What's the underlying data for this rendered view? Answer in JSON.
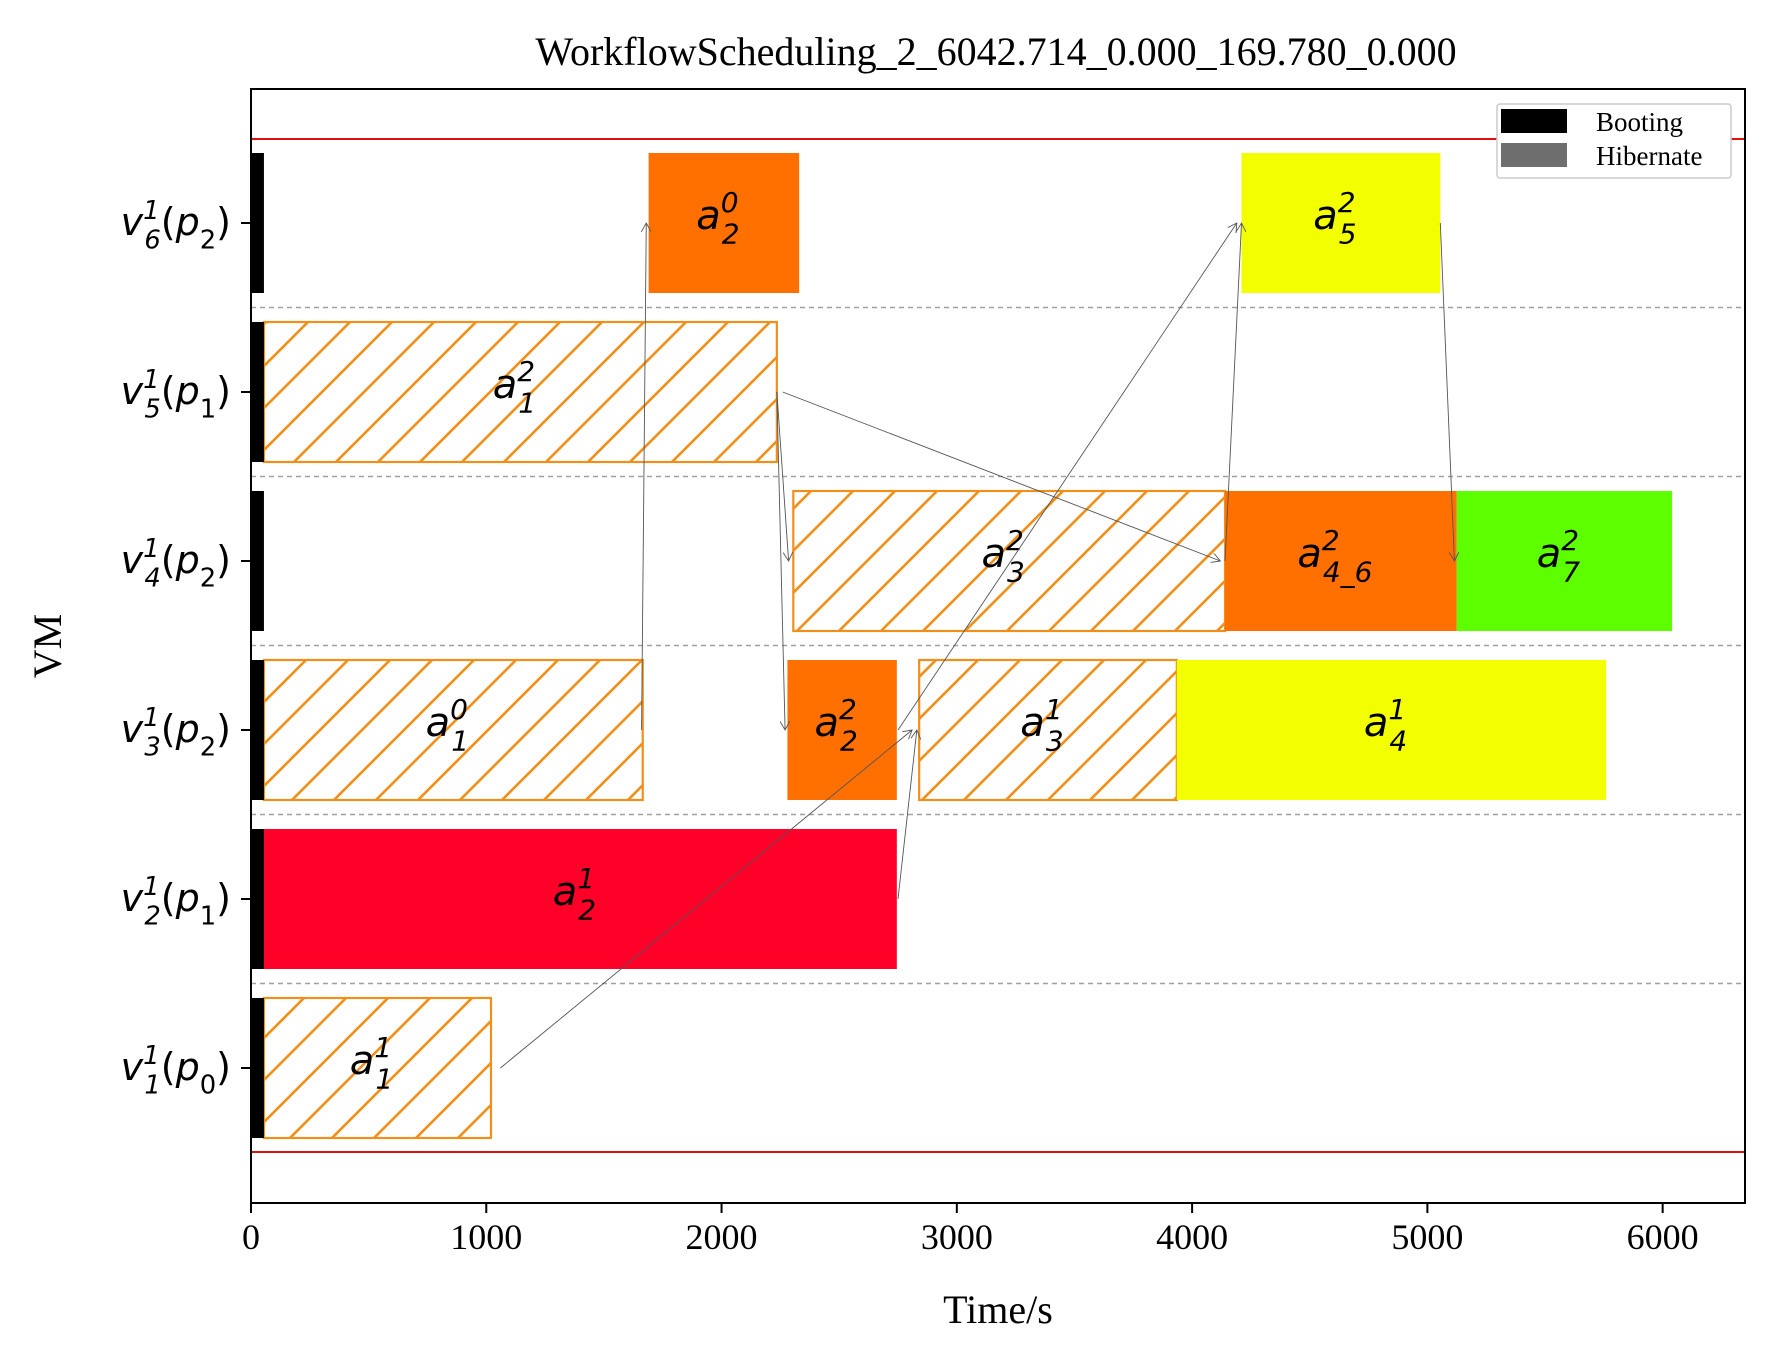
{
  "chart_data": {
    "type": "gantt",
    "title": "WorkflowScheduling_2_6042.714_0.000_169.780_0.000",
    "xlabel": "Time/s",
    "ylabel": "VM",
    "xlim": [
      0,
      6350
    ],
    "xticks": [
      0,
      1000,
      2000,
      3000,
      4000,
      5000,
      6000
    ],
    "grid": "dashed horizontal lane separators",
    "legend": {
      "position": "top-right",
      "entries": [
        {
          "label": "Booting",
          "color": "#000000"
        },
        {
          "label": "Hibernate",
          "color": "#6e6e6e"
        }
      ]
    },
    "vms": [
      {
        "base": "v",
        "sub": "1",
        "sup": "1",
        "plat": "p",
        "platsub": "0"
      },
      {
        "base": "v",
        "sub": "2",
        "sup": "1",
        "plat": "p",
        "platsub": "1"
      },
      {
        "base": "v",
        "sub": "3",
        "sup": "1",
        "plat": "p",
        "platsub": "2"
      },
      {
        "base": "v",
        "sub": "4",
        "sup": "1",
        "plat": "p",
        "platsub": "2"
      },
      {
        "base": "v",
        "sub": "5",
        "sup": "1",
        "plat": "p",
        "platsub": "1"
      },
      {
        "base": "v",
        "sub": "6",
        "sup": "1",
        "plat": "p",
        "platsub": "2"
      }
    ],
    "booting": [
      {
        "vm": 0,
        "start": 0,
        "end": 55
      },
      {
        "vm": 1,
        "start": 0,
        "end": 55
      },
      {
        "vm": 2,
        "start": 0,
        "end": 55
      },
      {
        "vm": 3,
        "start": 0,
        "end": 55
      },
      {
        "vm": 4,
        "start": 0,
        "end": 55
      },
      {
        "vm": 5,
        "start": 0,
        "end": 55
      }
    ],
    "tasks": [
      {
        "vm": 0,
        "start": 55,
        "end": 1020,
        "label_base": "a",
        "label_sub": "1",
        "label_sup": "1",
        "style": "hatched",
        "color": "#f0901a"
      },
      {
        "vm": 1,
        "start": 55,
        "end": 2745,
        "label_base": "a",
        "label_sub": "2",
        "label_sup": "1",
        "style": "solid",
        "color": "#ff0029"
      },
      {
        "vm": 2,
        "start": 55,
        "end": 1665,
        "label_base": "a",
        "label_sub": "1",
        "label_sup": "0",
        "style": "hatched",
        "color": "#f0901a"
      },
      {
        "vm": 2,
        "start": 2280,
        "end": 2745,
        "label_base": "a",
        "label_sub": "2",
        "label_sup": "2",
        "style": "solid",
        "color": "#ff7000"
      },
      {
        "vm": 2,
        "start": 2840,
        "end": 3935,
        "label_base": "a",
        "label_sub": "3",
        "label_sup": "1",
        "style": "hatched",
        "color": "#f0901a"
      },
      {
        "vm": 2,
        "start": 3935,
        "end": 5760,
        "label_base": "a",
        "label_sub": "4",
        "label_sup": "1",
        "style": "solid",
        "color": "#f3ff00"
      },
      {
        "vm": 3,
        "start": 2305,
        "end": 4140,
        "label_base": "a",
        "label_sub": "3",
        "label_sup": "2",
        "style": "hatched",
        "color": "#f0901a"
      },
      {
        "vm": 3,
        "start": 4140,
        "end": 5125,
        "label_base": "a",
        "label_sub": "4_6",
        "label_sup": "2",
        "style": "solid",
        "color": "#ff7000"
      },
      {
        "vm": 3,
        "start": 5125,
        "end": 6040,
        "label_base": "a",
        "label_sub": "7",
        "label_sup": "2",
        "style": "solid",
        "color": "#5dff00"
      },
      {
        "vm": 4,
        "start": 55,
        "end": 2235,
        "label_base": "a",
        "label_sub": "1",
        "label_sup": "2",
        "style": "hatched",
        "color": "#f0901a"
      },
      {
        "vm": 5,
        "start": 1690,
        "end": 2330,
        "label_base": "a",
        "label_sub": "2",
        "label_sup": "0",
        "style": "solid",
        "color": "#ff7000"
      },
      {
        "vm": 5,
        "start": 4210,
        "end": 5055,
        "label_base": "a",
        "label_sub": "5",
        "label_sup": "2",
        "style": "solid",
        "color": "#f3ff00"
      }
    ],
    "dependencies": [
      {
        "from_time": 1060,
        "from_vm": 0,
        "to_time": 2810,
        "to_vm": 2
      },
      {
        "from_time": 2750,
        "from_vm": 1,
        "to_time": 2830,
        "to_vm": 2
      },
      {
        "from_time": 1660,
        "from_vm": 2,
        "to_time": 1680,
        "to_vm": 5
      },
      {
        "from_time": 2750,
        "from_vm": 2,
        "to_time": 4190,
        "to_vm": 5
      },
      {
        "from_time": 2235,
        "from_vm": 4,
        "to_time": 2285,
        "to_vm": 3
      },
      {
        "from_time": 2235,
        "from_vm": 4,
        "to_time": 2270,
        "to_vm": 2
      },
      {
        "from_time": 2260,
        "from_vm": 4,
        "to_time": 4120,
        "to_vm": 3
      },
      {
        "from_time": 4140,
        "from_vm": 3,
        "to_time": 4210,
        "to_vm": 5
      },
      {
        "from_time": 5055,
        "from_vm": 5,
        "to_time": 5115,
        "to_vm": 3
      }
    ],
    "horizon_lines": "red lines above top lane and below bottom lane"
  }
}
